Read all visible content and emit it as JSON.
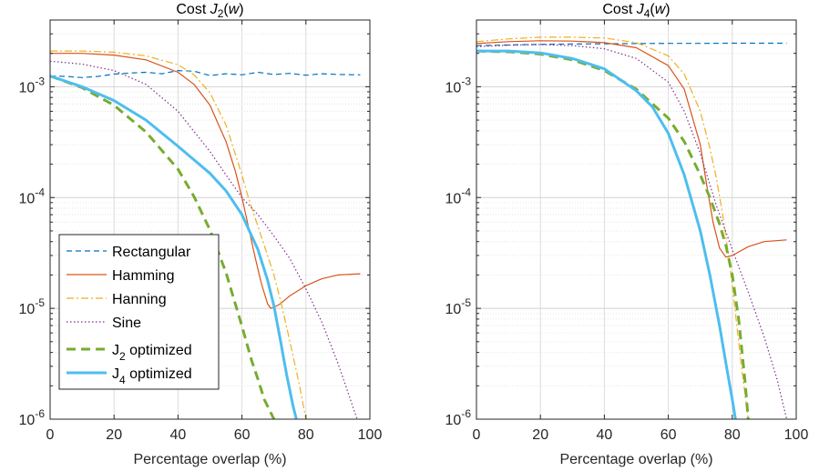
{
  "chart_data": [
    {
      "type": "line",
      "title": "Cost J",
      "title_sub": "2",
      "title_arg": "(w)",
      "xlabel": "Percentage overlap (%)",
      "ylabel": "",
      "xlim": [
        0,
        100
      ],
      "ylim": [
        1e-06,
        0.004
      ],
      "yscale": "log",
      "grid": true,
      "x_ticks": [
        "0",
        "20",
        "40",
        "60",
        "80",
        "100"
      ],
      "y_ticks": [
        {
          "base": "10",
          "exp": "-6"
        },
        {
          "base": "10",
          "exp": "-5"
        },
        {
          "base": "10",
          "exp": "-4"
        },
        {
          "base": "10",
          "exp": "-3"
        }
      ],
      "legend_position": "bottom-left",
      "legend": [
        {
          "label": "Rectangular"
        },
        {
          "label": "Hamming"
        },
        {
          "label": "Hanning"
        },
        {
          "label": "Sine"
        },
        {
          "label": "J",
          "sub": "2",
          "suffix": " optimized"
        },
        {
          "label": "J",
          "sub": "4",
          "suffix": " optimized"
        }
      ],
      "series": [
        {
          "name": "Rectangular",
          "color": "#0072BD",
          "dash": "dashed",
          "x": [
            0,
            5,
            10,
            15,
            20,
            25,
            30,
            35,
            40,
            45,
            50,
            55,
            60,
            65,
            70,
            75,
            80,
            85,
            90,
            97
          ],
          "y": [
            0.00125,
            0.00124,
            0.00121,
            0.00124,
            0.0013,
            0.00133,
            0.00135,
            0.00131,
            0.0014,
            0.00138,
            0.00126,
            0.00131,
            0.00128,
            0.00135,
            0.00129,
            0.00132,
            0.00127,
            0.00131,
            0.00129,
            0.00128
          ]
        },
        {
          "name": "Hamming",
          "color": "#D95319",
          "dash": "solid",
          "x": [
            0,
            10,
            20,
            30,
            40,
            45,
            50,
            55,
            58,
            60,
            62,
            64,
            66,
            68,
            69,
            70,
            72,
            75,
            80,
            85,
            90,
            97
          ],
          "y": [
            0.002,
            0.002,
            0.00193,
            0.00175,
            0.00135,
            0.00105,
            0.00068,
            0.00032,
            0.00017,
            0.0001,
            5.5e-05,
            3e-05,
            1.7e-05,
            1.1e-05,
            1e-05,
            1.02e-05,
            1.1e-05,
            1.3e-05,
            1.6e-05,
            1.85e-05,
            2e-05,
            2.05e-05
          ]
        },
        {
          "name": "Hanning",
          "color": "#EDB120",
          "dash": "dashdot",
          "x": [
            0,
            10,
            20,
            30,
            40,
            45,
            50,
            55,
            60,
            62,
            65,
            68,
            70,
            72,
            75,
            78,
            80
          ],
          "y": [
            0.0021,
            0.0021,
            0.00205,
            0.0019,
            0.00158,
            0.00128,
            0.00088,
            0.00045,
            0.00016,
            0.0001,
            5.5e-05,
            3e-05,
            2e-05,
            1.2e-05,
            5e-06,
            2e-06,
            1e-06
          ]
        },
        {
          "name": "Sine",
          "color": "#7E2F8E",
          "dash": "dotted",
          "x": [
            0,
            10,
            20,
            30,
            40,
            50,
            55,
            60,
            65,
            70,
            75,
            80,
            85,
            90,
            93,
            96
          ],
          "y": [
            0.0017,
            0.0016,
            0.0014,
            0.00105,
            0.0006,
            0.00026,
            0.00016,
            0.0001,
            7e-05,
            4.5e-05,
            2.8e-05,
            1.5e-05,
            7.5e-06,
            3.2e-06,
            1.8e-06,
            1e-06
          ]
        },
        {
          "name": "J2 optimized",
          "color": "#77AC30",
          "dash": "longdash",
          "x": [
            0,
            10,
            20,
            30,
            40,
            45,
            50,
            55,
            60,
            63,
            65,
            67,
            70,
            72
          ],
          "y": [
            0.00125,
            0.00098,
            0.00068,
            0.00039,
            0.00018,
            0.000102,
            5.1e-05,
            2.1e-05,
            6.9e-06,
            3.4e-06,
            2.3e-06,
            1.5e-06,
            1e-06,
            7.5e-07
          ]
        },
        {
          "name": "J4 optimized",
          "color": "#4DBEEE",
          "dash": "solid",
          "x": [
            0,
            10,
            20,
            30,
            40,
            50,
            55,
            60,
            65,
            68,
            70,
            72,
            74,
            76,
            77
          ],
          "y": [
            0.00125,
            0.001,
            0.00075,
            0.0005,
            0.00029,
            0.000165,
            0.000115,
            7e-05,
            3.4e-05,
            1.8e-05,
            1.05e-05,
            5.2e-06,
            2.5e-06,
            1.3e-06,
            1e-06
          ]
        }
      ]
    },
    {
      "type": "line",
      "title": "Cost J",
      "title_sub": "4",
      "title_arg": "(w)",
      "xlabel": "Percentage overlap (%)",
      "ylabel": "",
      "xlim": [
        0,
        100
      ],
      "ylim": [
        1e-06,
        0.004
      ],
      "yscale": "log",
      "grid": true,
      "x_ticks": [
        "0",
        "20",
        "40",
        "60",
        "80",
        "100"
      ],
      "y_ticks": [
        {
          "base": "10",
          "exp": "-6"
        },
        {
          "base": "10",
          "exp": "-5"
        },
        {
          "base": "10",
          "exp": "-4"
        },
        {
          "base": "10",
          "exp": "-3"
        }
      ],
      "series": [
        {
          "name": "Rectangular",
          "color": "#0072BD",
          "dash": "dashed",
          "x": [
            0,
            10,
            20,
            30,
            40,
            50,
            60,
            70,
            80,
            90,
            97
          ],
          "y": [
            0.00235,
            0.00238,
            0.00241,
            0.00243,
            0.00244,
            0.00245,
            0.00246,
            0.00246,
            0.00247,
            0.00247,
            0.00247
          ]
        },
        {
          "name": "Hamming",
          "color": "#D95319",
          "dash": "solid",
          "x": [
            0,
            10,
            20,
            30,
            40,
            50,
            60,
            65,
            70,
            72,
            74,
            76,
            78,
            80,
            85,
            90,
            97
          ],
          "y": [
            0.00245,
            0.00255,
            0.0026,
            0.00258,
            0.0025,
            0.00225,
            0.00155,
            0.00095,
            0.0003,
            0.00013,
            6e-05,
            3.5e-05,
            2.9e-05,
            3e-05,
            3.6e-05,
            4e-05,
            4.15e-05
          ]
        },
        {
          "name": "Hanning",
          "color": "#EDB120",
          "dash": "dashdot",
          "x": [
            0,
            10,
            20,
            30,
            40,
            50,
            60,
            65,
            70,
            73,
            75,
            77,
            79,
            81,
            83,
            85
          ],
          "y": [
            0.00255,
            0.0027,
            0.0028,
            0.0028,
            0.00275,
            0.0025,
            0.0019,
            0.0013,
            0.0006,
            0.00028,
            0.00015,
            7e-05,
            2.8e-05,
            9e-06,
            2.8e-06,
            1e-06
          ]
        },
        {
          "name": "Sine",
          "color": "#7E2F8E",
          "dash": "dotted",
          "x": [
            0,
            10,
            20,
            30,
            40,
            50,
            60,
            65,
            70,
            75,
            80,
            85,
            90,
            94,
            97
          ],
          "y": [
            0.0023,
            0.00237,
            0.0024,
            0.00235,
            0.0022,
            0.0018,
            0.0011,
            0.0006,
            0.00025,
            8.5e-05,
            3.4e-05,
            1.4e-05,
            5.5e-06,
            2.3e-06,
            1e-06
          ]
        },
        {
          "name": "J2 optimized",
          "color": "#77AC30",
          "dash": "longdash",
          "x": [
            0,
            10,
            20,
            30,
            40,
            50,
            60,
            65,
            70,
            73,
            76,
            78,
            80,
            82,
            84,
            85
          ],
          "y": [
            0.0021,
            0.00207,
            0.00197,
            0.00175,
            0.0014,
            0.00095,
            0.00052,
            0.00032,
            0.00016,
            0.0001,
            5.8e-05,
            3.7e-05,
            2e-05,
            8e-06,
            2.2e-06,
            1e-06
          ]
        },
        {
          "name": "J4 optimized",
          "color": "#4DBEEE",
          "dash": "solid",
          "x": [
            0,
            10,
            20,
            30,
            40,
            50,
            55,
            60,
            65,
            70,
            73,
            76,
            78,
            80,
            81
          ],
          "y": [
            0.0021,
            0.0021,
            0.00202,
            0.0018,
            0.00145,
            0.00092,
            0.00066,
            0.00038,
            0.00016,
            5e-05,
            2e-05,
            7e-06,
            3.2e-06,
            1.5e-06,
            1e-06
          ]
        }
      ]
    }
  ]
}
